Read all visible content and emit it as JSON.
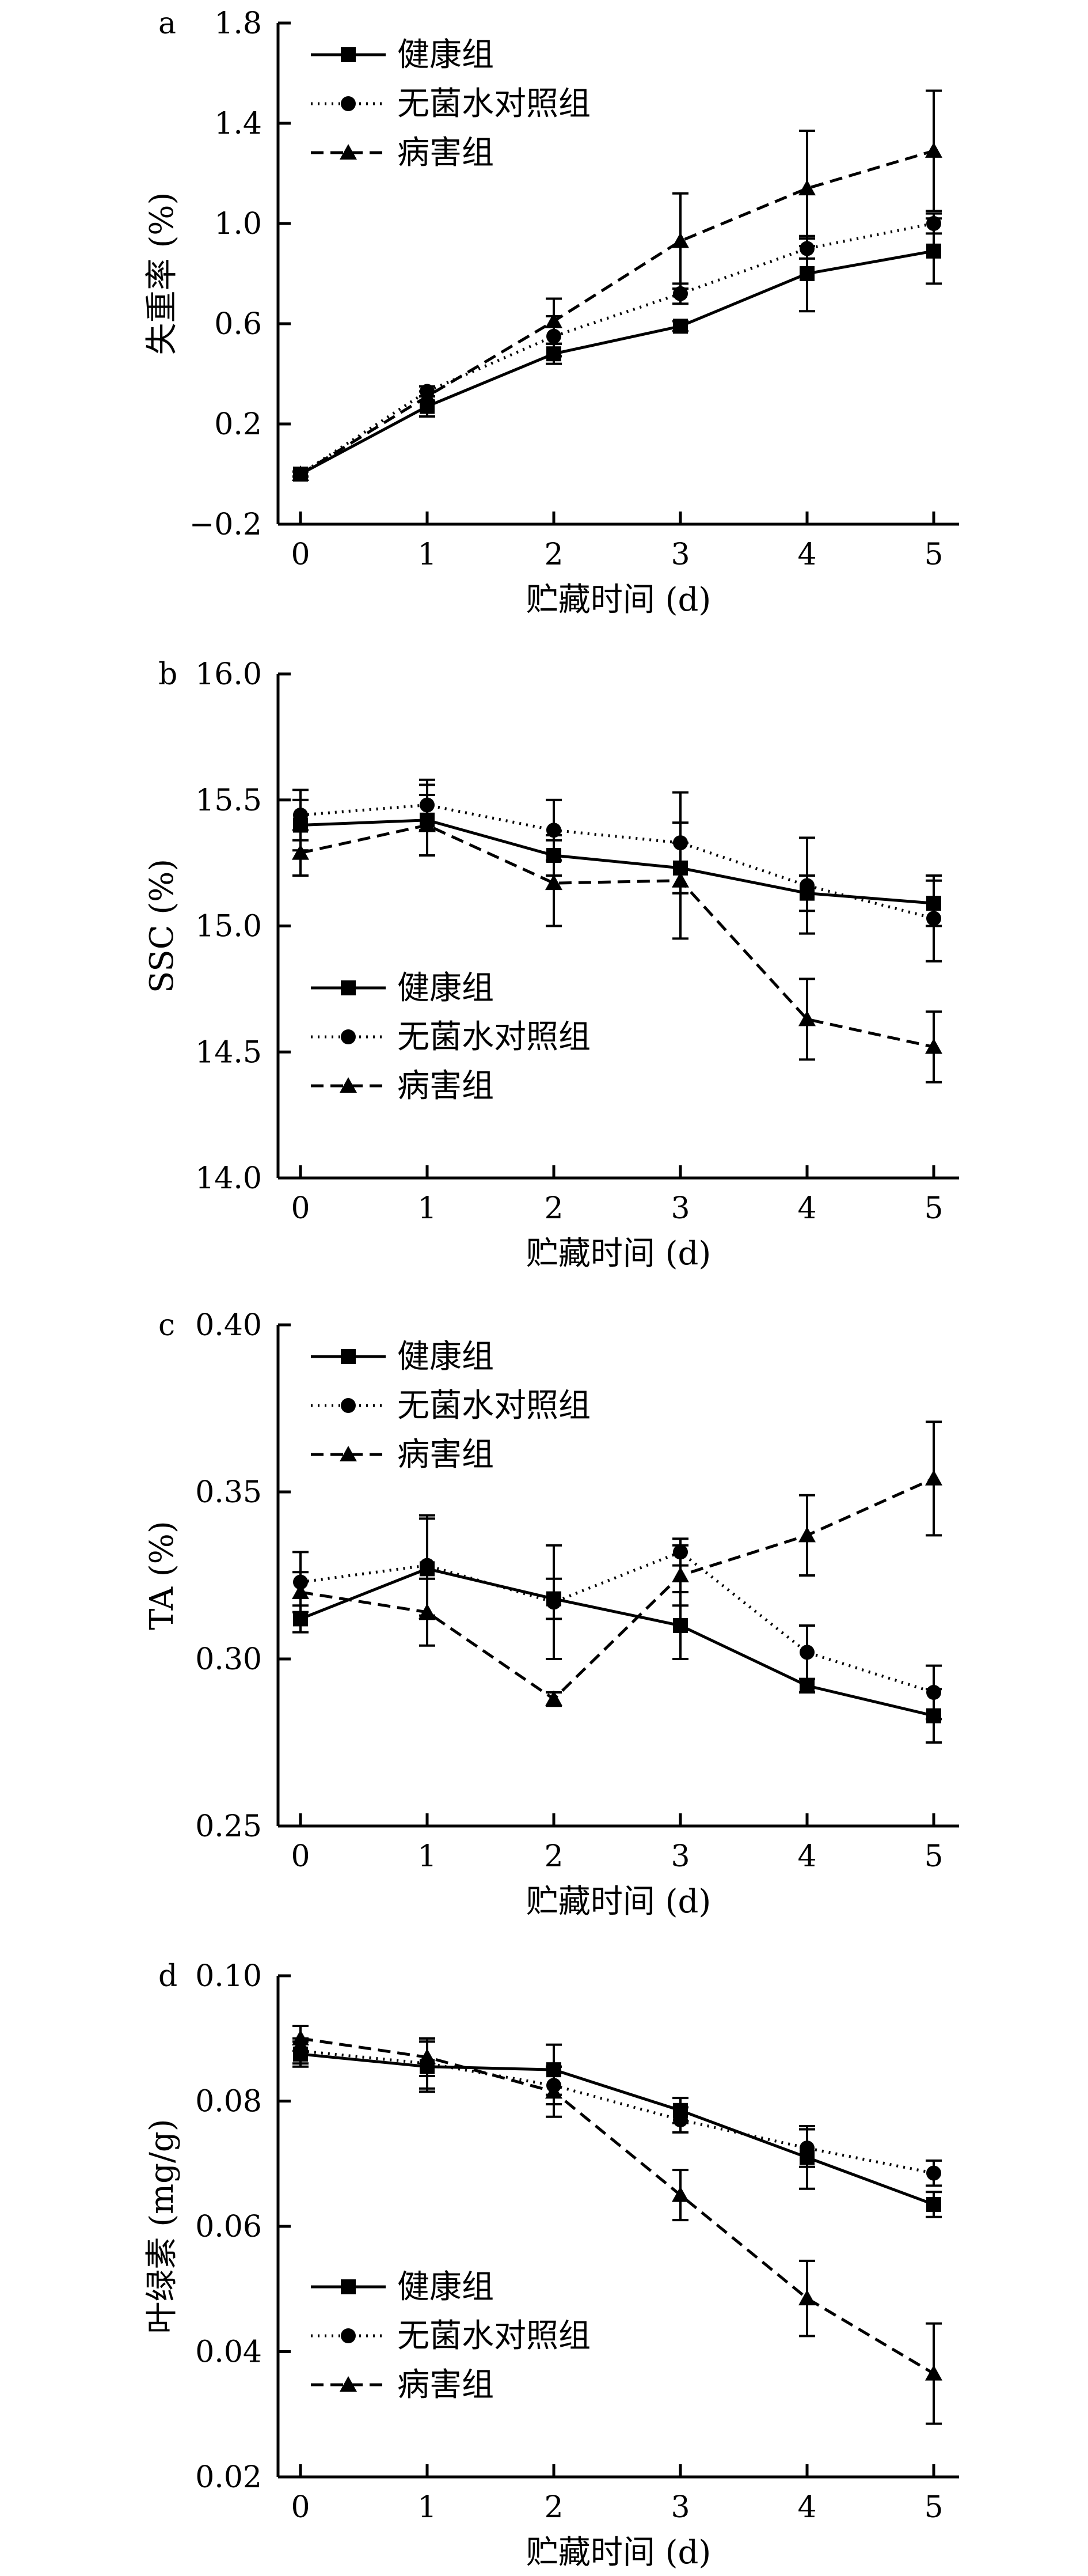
{
  "chart_data": [
    {
      "type": "line",
      "panel_label": "a",
      "xlabel": "贮藏时间 (d)",
      "ylabel": "失重率 (%)",
      "x": [
        0,
        1,
        2,
        3,
        4,
        5
      ],
      "x_ticks": [
        "0",
        "1",
        "2",
        "3",
        "4",
        "5"
      ],
      "ylim": [
        -0.2,
        1.8
      ],
      "y_ticks": [
        "−0.2",
        "0.2",
        "0.6",
        "1.0",
        "1.4",
        "1.8"
      ],
      "y_tick_values": [
        -0.2,
        0.2,
        0.6,
        1.0,
        1.4,
        1.8
      ],
      "legend_position": "top-left",
      "series": [
        {
          "name": "健康组",
          "marker": "square",
          "dash": "solid",
          "values": [
            0.0,
            0.27,
            0.48,
            0.59,
            0.8,
            0.89
          ],
          "errors": [
            0.01,
            0.04,
            0.04,
            0.02,
            0.15,
            0.13
          ]
        },
        {
          "name": "无菌水对照组",
          "marker": "circle",
          "dash": "dotted",
          "values": [
            0.0,
            0.33,
            0.55,
            0.72,
            0.9,
            1.0
          ],
          "errors": [
            0.01,
            0.02,
            0.08,
            0.04,
            0.04,
            0.04
          ]
        },
        {
          "name": "病害组",
          "marker": "triangle",
          "dash": "dashed",
          "values": [
            0.0,
            0.31,
            0.61,
            0.93,
            1.14,
            1.29
          ],
          "errors": [
            0.01,
            0.02,
            0.09,
            0.19,
            0.23,
            0.24
          ]
        }
      ]
    },
    {
      "type": "line",
      "panel_label": "b",
      "xlabel": "贮藏时间 (d)",
      "ylabel": "SSC (%)",
      "x": [
        0,
        1,
        2,
        3,
        4,
        5
      ],
      "x_ticks": [
        "0",
        "1",
        "2",
        "3",
        "4",
        "5"
      ],
      "ylim": [
        14.0,
        16.0
      ],
      "y_ticks": [
        "14.0",
        "14.5",
        "15.0",
        "15.5",
        "16.0"
      ],
      "y_tick_values": [
        14.0,
        14.5,
        15.0,
        15.5,
        16.0
      ],
      "legend_position": "bottom-left",
      "series": [
        {
          "name": "健康组",
          "marker": "square",
          "dash": "solid",
          "values": [
            15.4,
            15.42,
            15.28,
            15.23,
            15.13,
            15.09
          ],
          "errors": [
            0.1,
            0.14,
            0.08,
            0.1,
            0.07,
            0.09
          ]
        },
        {
          "name": "无菌水对照组",
          "marker": "circle",
          "dash": "dotted",
          "values": [
            15.44,
            15.48,
            15.38,
            15.33,
            15.16,
            15.03
          ],
          "errors": [
            0.1,
            0.1,
            0.12,
            0.2,
            0.19,
            0.17
          ]
        },
        {
          "name": "病害组",
          "marker": "triangle",
          "dash": "dashed",
          "values": [
            15.29,
            15.4,
            15.17,
            15.18,
            14.63,
            14.52
          ],
          "errors": [
            0.09,
            0.12,
            0.17,
            0.23,
            0.16,
            0.14
          ]
        }
      ]
    },
    {
      "type": "line",
      "panel_label": "c",
      "xlabel": "贮藏时间 (d)",
      "ylabel": "TA (%)",
      "x": [
        0,
        1,
        2,
        3,
        4,
        5
      ],
      "x_ticks": [
        "0",
        "1",
        "2",
        "3",
        "4",
        "5"
      ],
      "ylim": [
        0.25,
        0.4
      ],
      "y_ticks": [
        "0.25",
        "0.30",
        "0.35",
        "0.40"
      ],
      "y_tick_values": [
        0.25,
        0.3,
        0.35,
        0.4
      ],
      "legend_position": "top-left",
      "series": [
        {
          "name": "健康组",
          "marker": "square",
          "dash": "solid",
          "values": [
            0.312,
            0.327,
            0.318,
            0.31,
            0.292,
            0.283
          ],
          "errors": [
            0.004,
            0.015,
            0.006,
            0.01,
            0.002,
            0.008
          ]
        },
        {
          "name": "无菌水对照组",
          "marker": "circle",
          "dash": "dotted",
          "values": [
            0.323,
            0.328,
            0.317,
            0.332,
            0.302,
            0.29
          ],
          "errors": [
            0.009,
            0.015,
            0.017,
            0.004,
            0.008,
            0.008
          ]
        },
        {
          "name": "病害组",
          "marker": "triangle",
          "dash": "dashed",
          "values": [
            0.32,
            0.314,
            0.288,
            0.325,
            0.337,
            0.354
          ],
          "errors": [
            0.006,
            0.01,
            0.002,
            0.009,
            0.012,
            0.017
          ]
        }
      ]
    },
    {
      "type": "line",
      "panel_label": "d",
      "xlabel": "贮藏时间 (d)",
      "ylabel": "叶绿素 (mg/g)",
      "x": [
        0,
        1,
        2,
        3,
        4,
        5
      ],
      "x_ticks": [
        "0",
        "1",
        "2",
        "3",
        "4",
        "5"
      ],
      "ylim": [
        0.02,
        0.1
      ],
      "y_ticks": [
        "0.02",
        "0.04",
        "0.06",
        "0.08",
        "0.10"
      ],
      "y_tick_values": [
        0.02,
        0.04,
        0.06,
        0.08,
        0.1
      ],
      "legend_position": "bottom-left",
      "series": [
        {
          "name": "健康组",
          "marker": "square",
          "dash": "solid",
          "values": [
            0.0875,
            0.0855,
            0.085,
            0.0785,
            0.071,
            0.0635
          ],
          "errors": [
            0.002,
            0.004,
            0.004,
            0.002,
            0.005,
            0.002
          ]
        },
        {
          "name": "无菌水对照组",
          "marker": "circle",
          "dash": "dotted",
          "values": [
            0.088,
            0.086,
            0.0825,
            0.077,
            0.0725,
            0.0685
          ],
          "errors": [
            0.002,
            0.004,
            0.003,
            0.002,
            0.003,
            0.002
          ]
        },
        {
          "name": "病害组",
          "marker": "triangle",
          "dash": "dashed",
          "values": [
            0.09,
            0.087,
            0.0815,
            0.065,
            0.0485,
            0.0365
          ],
          "errors": [
            0.002,
            0.003,
            0.004,
            0.004,
            0.006,
            0.008
          ]
        }
      ]
    }
  ]
}
